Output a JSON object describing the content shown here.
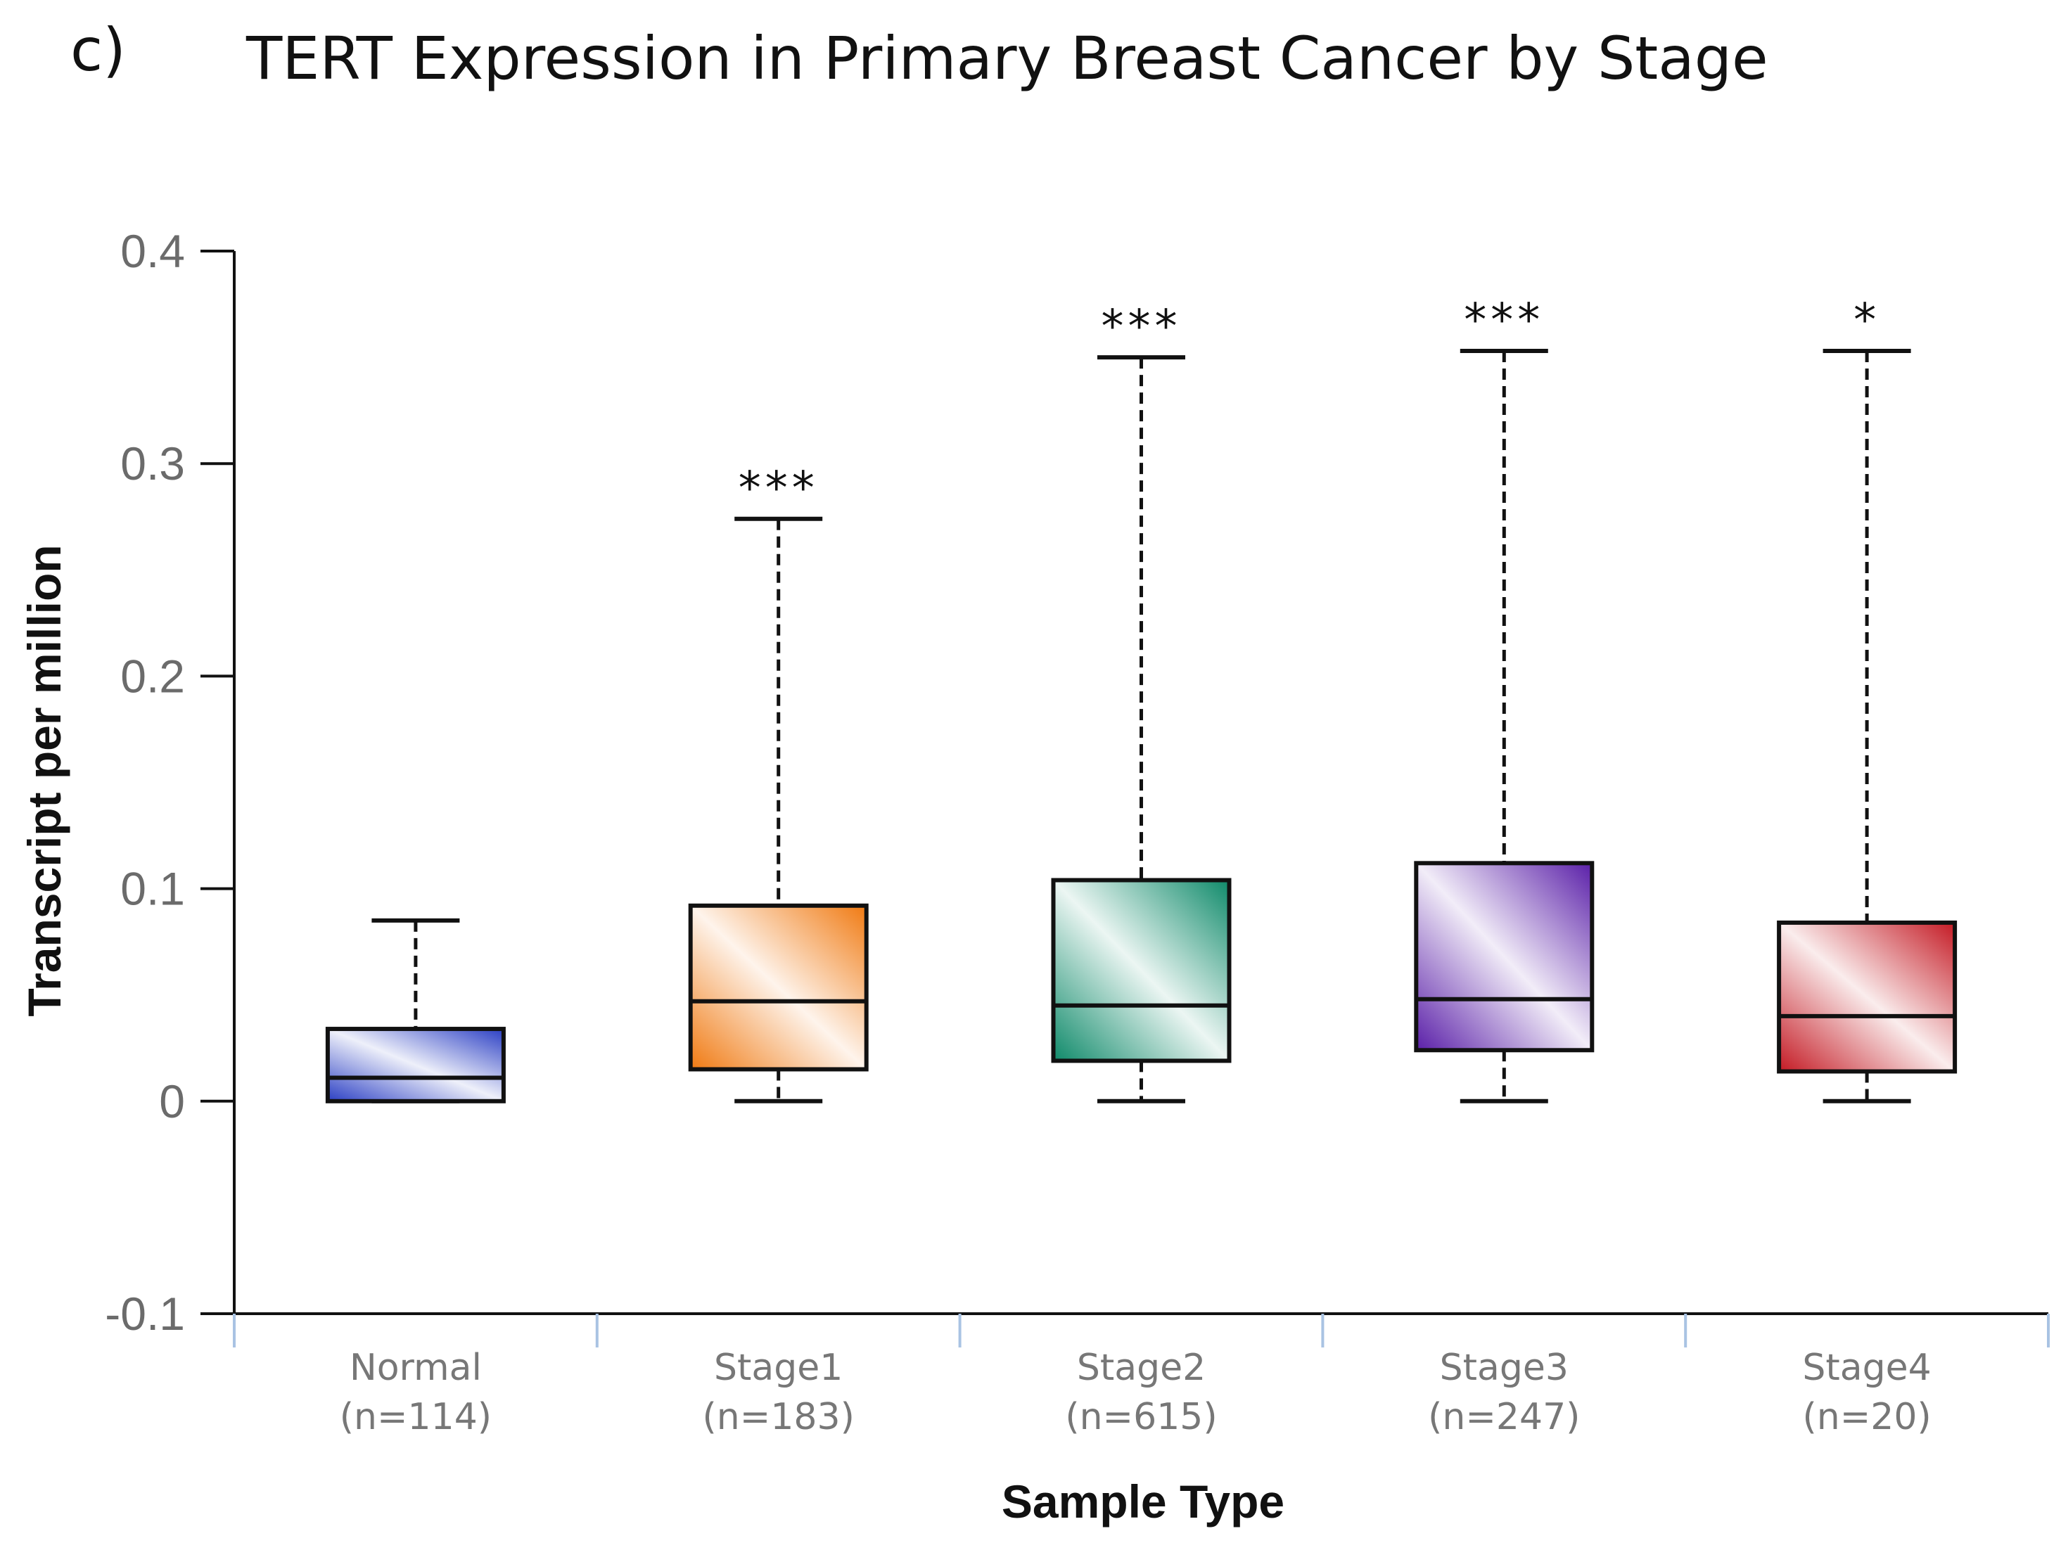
{
  "panel_label": "c)",
  "chart_data": {
    "type": "boxplot",
    "title": "TERT Expression in Primary Breast Cancer by Stage",
    "xlabel": "Sample Type",
    "ylabel": "Transcript per million",
    "ylim": [
      -0.1,
      0.4
    ],
    "yticks": [
      {
        "value": -0.1,
        "label": "-0.1"
      },
      {
        "value": 0,
        "label": "0"
      },
      {
        "value": 0.1,
        "label": "0.1"
      },
      {
        "value": 0.2,
        "label": "0.2"
      },
      {
        "value": 0.3,
        "label": "0.3"
      },
      {
        "value": 0.4,
        "label": "0.4"
      }
    ],
    "groups": [
      {
        "name": "Normal",
        "n_label": "(n=114)",
        "whisker_low": 0.0,
        "q1": 0.0,
        "median": 0.011,
        "q3": 0.034,
        "whisker_high": 0.085,
        "significance": "",
        "color": "#2b3fc4"
      },
      {
        "name": "Stage1",
        "n_label": "(n=183)",
        "whisker_low": 0.0,
        "q1": 0.015,
        "median": 0.047,
        "q3": 0.092,
        "whisker_high": 0.274,
        "significance": "***",
        "color": "#f07a12"
      },
      {
        "name": "Stage2",
        "n_label": "(n=615)",
        "whisker_low": 0.0,
        "q1": 0.019,
        "median": 0.045,
        "q3": 0.104,
        "whisker_high": 0.35,
        "significance": "***",
        "color": "#0f8a6a"
      },
      {
        "name": "Stage3",
        "n_label": "(n=247)",
        "whisker_low": 0.0,
        "q1": 0.024,
        "median": 0.048,
        "q3": 0.112,
        "whisker_high": 0.353,
        "significance": "***",
        "color": "#5a1fa8"
      },
      {
        "name": "Stage4",
        "n_label": "(n=20)",
        "whisker_low": 0.0,
        "q1": 0.014,
        "median": 0.04,
        "q3": 0.084,
        "whisker_high": 0.353,
        "significance": "*",
        "color": "#c41a24"
      }
    ]
  }
}
